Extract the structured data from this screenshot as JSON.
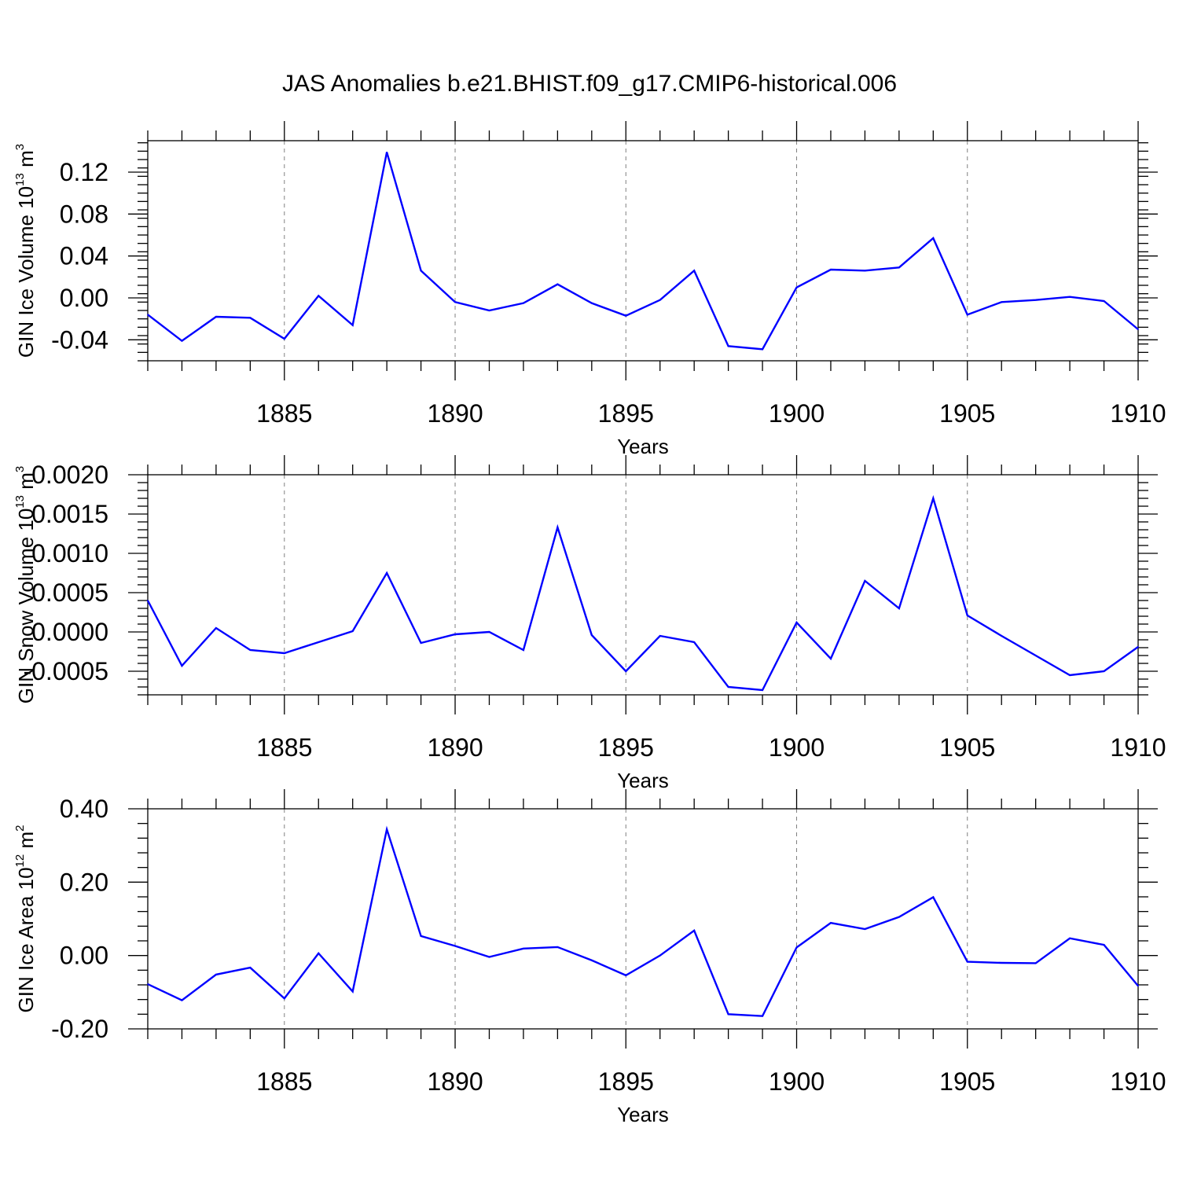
{
  "figure_title": "JAS Anomalies b.e21.BHIST.f09_g17.CMIP6-historical.006",
  "colors": {
    "line": "#0000ff",
    "axis": "#000000",
    "grid": "#808080"
  },
  "chart_data": [
    {
      "type": "line",
      "title": "JAS Anomalies b.e21.BHIST.f09_g17.CMIP6-historical.006",
      "ylabel": {
        "text": "GIN Ice Volume 10",
        "sup": "13",
        "unit": " m",
        "unit_sup": "3"
      },
      "xlabel": "Years",
      "xlim": [
        1881,
        1910
      ],
      "ylim": [
        -0.06,
        0.15
      ],
      "xticks": [
        1885,
        1890,
        1895,
        1900,
        1905,
        1910
      ],
      "xtick_labels": [
        "1885",
        "1890",
        "1895",
        "1900",
        "1905",
        "1910"
      ],
      "yticks": [
        -0.04,
        0.0,
        0.04,
        0.08,
        0.12
      ],
      "ytick_labels": [
        "-0.04",
        "0.00",
        "0.04",
        "0.08",
        "0.12"
      ],
      "grid": "vertical dashed at major x ticks",
      "x": [
        1881,
        1882,
        1883,
        1884,
        1885,
        1886,
        1887,
        1888,
        1889,
        1890,
        1891,
        1892,
        1893,
        1894,
        1895,
        1896,
        1897,
        1898,
        1899,
        1900,
        1901,
        1902,
        1903,
        1904,
        1905,
        1906,
        1907,
        1908,
        1909,
        1910
      ],
      "values": [
        -0.016,
        -0.041,
        -0.018,
        -0.019,
        -0.039,
        0.002,
        -0.026,
        0.139,
        0.026,
        -0.004,
        -0.012,
        -0.005,
        0.013,
        -0.005,
        -0.017,
        -0.002,
        0.026,
        -0.046,
        -0.049,
        0.01,
        0.027,
        0.026,
        0.029,
        0.057,
        -0.016,
        -0.004,
        -0.002,
        0.001,
        -0.003,
        -0.03
      ]
    },
    {
      "type": "line",
      "ylabel": {
        "text": "GIN Snow Volume 10",
        "sup": "13",
        "unit": " m",
        "unit_sup": "3"
      },
      "xlabel": "Years",
      "xlim": [
        1881,
        1910
      ],
      "ylim": [
        -0.0008,
        0.002
      ],
      "xticks": [
        1885,
        1890,
        1895,
        1900,
        1905,
        1910
      ],
      "xtick_labels": [
        "1885",
        "1890",
        "1895",
        "1900",
        "1905",
        "1910"
      ],
      "yticks": [
        -0.0005,
        0.0,
        0.0005,
        0.001,
        0.0015,
        0.002
      ],
      "ytick_labels": [
        "-0.0005",
        "0.0000",
        "0.0005",
        "0.0010",
        "0.0015",
        "0.0020"
      ],
      "grid": "vertical dashed at major x ticks",
      "x": [
        1881,
        1882,
        1883,
        1884,
        1885,
        1886,
        1887,
        1888,
        1889,
        1890,
        1891,
        1892,
        1893,
        1894,
        1895,
        1896,
        1897,
        1898,
        1899,
        1900,
        1901,
        1902,
        1903,
        1904,
        1905,
        1906,
        1907,
        1908,
        1909,
        1910
      ],
      "values": [
        0.0004,
        -0.00043,
        5e-05,
        -0.00023,
        -0.00027,
        -0.00013,
        1e-05,
        0.00075,
        -0.00014,
        -3e-05,
        0.0,
        -0.00023,
        0.00133,
        -4e-05,
        -0.0005,
        -5e-05,
        -0.00013,
        -0.0007,
        -0.00074,
        0.00012,
        -0.00034,
        0.00065,
        0.0003,
        0.0017,
        0.00021,
        -5e-05,
        -0.0003,
        -0.00055,
        -0.0005,
        -0.00019
      ]
    },
    {
      "type": "line",
      "ylabel": {
        "text": "GIN Ice Area 10",
        "sup": "12",
        "unit": " m",
        "unit_sup": "2"
      },
      "xlabel": "Years",
      "xlim": [
        1881,
        1910
      ],
      "ylim": [
        -0.2,
        0.4
      ],
      "xticks": [
        1885,
        1890,
        1895,
        1900,
        1905,
        1910
      ],
      "xtick_labels": [
        "1885",
        "1890",
        "1895",
        "1900",
        "1905",
        "1910"
      ],
      "yticks": [
        -0.2,
        0.0,
        0.2,
        0.4
      ],
      "ytick_labels": [
        "-0.20",
        "0.00",
        "0.20",
        "0.40"
      ],
      "grid": "vertical dashed at major x ticks",
      "x": [
        1881,
        1882,
        1883,
        1884,
        1885,
        1886,
        1887,
        1888,
        1889,
        1890,
        1891,
        1892,
        1893,
        1894,
        1895,
        1896,
        1897,
        1898,
        1899,
        1900,
        1901,
        1902,
        1903,
        1904,
        1905,
        1906,
        1907,
        1908,
        1909,
        1910
      ],
      "values": [
        -0.078,
        -0.122,
        -0.052,
        -0.033,
        -0.117,
        0.006,
        -0.098,
        0.344,
        0.053,
        0.026,
        -0.004,
        0.019,
        0.023,
        -0.013,
        -0.054,
        0.0,
        0.068,
        -0.16,
        -0.165,
        0.022,
        0.089,
        0.072,
        0.105,
        0.159,
        -0.017,
        -0.02,
        -0.021,
        0.047,
        0.029,
        -0.083
      ]
    }
  ]
}
